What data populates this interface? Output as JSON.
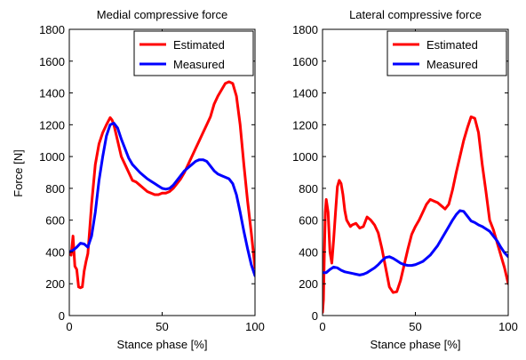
{
  "figure": {
    "shared_ylabel": "Force [N]"
  },
  "chart_data": [
    {
      "type": "line",
      "title": "Medial compressive force",
      "xlabel": "Stance phase [%]",
      "ylabel": "Force [N]",
      "xlim": [
        0,
        100
      ],
      "ylim": [
        0,
        1800
      ],
      "xticks": [
        0,
        50,
        100
      ],
      "yticks": [
        0,
        200,
        400,
        600,
        800,
        1000,
        1200,
        1400,
        1600,
        1800
      ],
      "legend_position": "top-right",
      "grid": false,
      "series": [
        {
          "name": "Estimated",
          "color": "#ff0000",
          "x": [
            0,
            1,
            2,
            3,
            4,
            5,
            6,
            7,
            8,
            9,
            10,
            12,
            14,
            16,
            18,
            20,
            22,
            23,
            24,
            26,
            28,
            30,
            32,
            34,
            36,
            38,
            40,
            42,
            44,
            46,
            48,
            50,
            52,
            54,
            56,
            58,
            60,
            62,
            64,
            66,
            68,
            70,
            72,
            74,
            76,
            78,
            80,
            82,
            84,
            86,
            88,
            90,
            92,
            94,
            96,
            98,
            100
          ],
          "y": [
            390,
            380,
            500,
            310,
            290,
            180,
            175,
            180,
            280,
            340,
            390,
            700,
            950,
            1080,
            1150,
            1200,
            1245,
            1230,
            1200,
            1100,
            1000,
            950,
            900,
            850,
            840,
            820,
            800,
            780,
            770,
            760,
            760,
            770,
            770,
            780,
            800,
            830,
            860,
            900,
            950,
            1000,
            1050,
            1100,
            1150,
            1200,
            1250,
            1330,
            1380,
            1420,
            1460,
            1470,
            1460,
            1380,
            1200,
            950,
            720,
            520,
            300
          ]
        },
        {
          "name": "Measured",
          "color": "#0000ff",
          "x": [
            0,
            2,
            4,
            6,
            8,
            10,
            12,
            14,
            16,
            18,
            20,
            22,
            24,
            26,
            28,
            30,
            32,
            34,
            36,
            38,
            40,
            42,
            44,
            46,
            48,
            50,
            52,
            54,
            56,
            58,
            60,
            62,
            64,
            66,
            68,
            70,
            72,
            74,
            76,
            78,
            80,
            82,
            84,
            86,
            88,
            90,
            92,
            94,
            96,
            98,
            100
          ],
          "y": [
            400,
            410,
            430,
            455,
            450,
            430,
            500,
            650,
            850,
            1000,
            1130,
            1200,
            1210,
            1180,
            1110,
            1050,
            990,
            950,
            925,
            900,
            880,
            860,
            845,
            830,
            815,
            800,
            795,
            800,
            820,
            850,
            880,
            910,
            930,
            950,
            970,
            980,
            980,
            970,
            940,
            910,
            890,
            880,
            870,
            860,
            830,
            760,
            650,
            530,
            420,
            320,
            250
          ]
        }
      ]
    },
    {
      "type": "line",
      "title": "Lateral compressive force",
      "xlabel": "Stance phase [%]",
      "ylabel": "",
      "xlim": [
        0,
        100
      ],
      "ylim": [
        0,
        1800
      ],
      "xticks": [
        0,
        50,
        100
      ],
      "yticks": [
        0,
        200,
        400,
        600,
        800,
        1000,
        1200,
        1400,
        1600,
        1800
      ],
      "legend_position": "top-right",
      "grid": false,
      "series": [
        {
          "name": "Estimated",
          "color": "#ff0000",
          "x": [
            0,
            0.5,
            1,
            1.5,
            2,
            3,
            4,
            5,
            6,
            7,
            8,
            9,
            10,
            11,
            12,
            13,
            14,
            15,
            16,
            18,
            20,
            22,
            24,
            25,
            26,
            28,
            30,
            32,
            34,
            36,
            38,
            40,
            42,
            44,
            46,
            48,
            50,
            52,
            54,
            56,
            58,
            60,
            62,
            64,
            66,
            68,
            70,
            72,
            74,
            76,
            78,
            80,
            82,
            84,
            86,
            88,
            90,
            92,
            94,
            96,
            98,
            100
          ],
          "y": [
            20,
            100,
            400,
            650,
            730,
            650,
            400,
            330,
            480,
            650,
            810,
            850,
            830,
            760,
            660,
            600,
            580,
            560,
            570,
            580,
            550,
            560,
            620,
            610,
            600,
            570,
            520,
            420,
            300,
            180,
            145,
            150,
            220,
            320,
            420,
            510,
            560,
            600,
            650,
            700,
            730,
            720,
            710,
            690,
            670,
            700,
            790,
            900,
            1000,
            1100,
            1180,
            1250,
            1240,
            1150,
            950,
            780,
            600,
            540,
            460,
            380,
            300,
            200
          ]
        },
        {
          "name": "Measured",
          "color": "#0000ff",
          "x": [
            0,
            2,
            4,
            6,
            8,
            10,
            12,
            14,
            16,
            18,
            20,
            22,
            24,
            26,
            28,
            30,
            32,
            34,
            36,
            38,
            40,
            42,
            44,
            46,
            48,
            50,
            52,
            54,
            56,
            58,
            60,
            62,
            64,
            66,
            68,
            70,
            72,
            74,
            76,
            78,
            80,
            82,
            84,
            86,
            88,
            90,
            92,
            94,
            96,
            98,
            100
          ],
          "y": [
            270,
            270,
            290,
            305,
            300,
            285,
            275,
            270,
            265,
            260,
            255,
            260,
            270,
            285,
            300,
            320,
            345,
            365,
            370,
            360,
            345,
            330,
            320,
            315,
            315,
            320,
            330,
            340,
            360,
            380,
            410,
            440,
            480,
            520,
            560,
            600,
            635,
            660,
            655,
            625,
            595,
            585,
            570,
            560,
            545,
            530,
            500,
            470,
            430,
            395,
            370
          ]
        }
      ]
    }
  ]
}
